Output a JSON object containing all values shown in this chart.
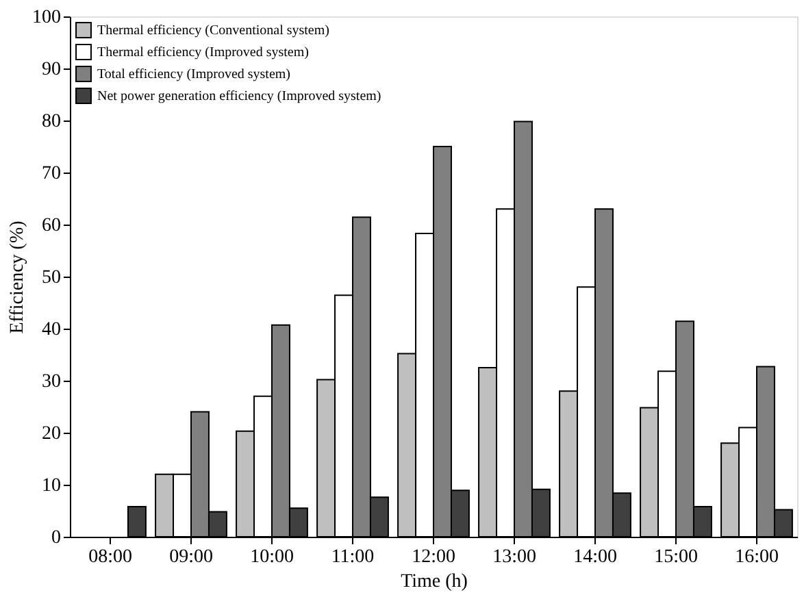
{
  "chart_data": {
    "type": "bar",
    "xlabel": "Time (h)",
    "ylabel": "Efficiency (%)",
    "categories": [
      "08:00",
      "09:00",
      "10:00",
      "11:00",
      "12:00",
      "13:00",
      "14:00",
      "15:00",
      "16:00"
    ],
    "series": [
      {
        "name": "Thermal efficiency (Conventional system)",
        "color": "#bfbfbf",
        "values": [
          0,
          12,
          20.3,
          30.2,
          35.2,
          32.5,
          28,
          24.8,
          18
        ]
      },
      {
        "name": "Thermal efficiency (Improved system)",
        "color": "#ffffff",
        "values": [
          0,
          12,
          27,
          46.4,
          58.3,
          63,
          48,
          31.8,
          21
        ]
      },
      {
        "name": "Total efficiency (Improved system)",
        "color": "#808080",
        "values": [
          0,
          24,
          40.7,
          61.4,
          75,
          79.8,
          63,
          41.4,
          32.7
        ]
      },
      {
        "name": "Net power generation efficiency (Improved system)",
        "color": "#404040",
        "values": [
          5.8,
          4.8,
          5.5,
          7.6,
          8.9,
          9.1,
          8.4,
          5.8,
          5.2
        ]
      }
    ],
    "ylim": [
      0,
      100
    ],
    "yticks": [
      0,
      10,
      20,
      30,
      40,
      50,
      60,
      70,
      80,
      90,
      100
    ],
    "grid": false,
    "legend": "top left"
  }
}
